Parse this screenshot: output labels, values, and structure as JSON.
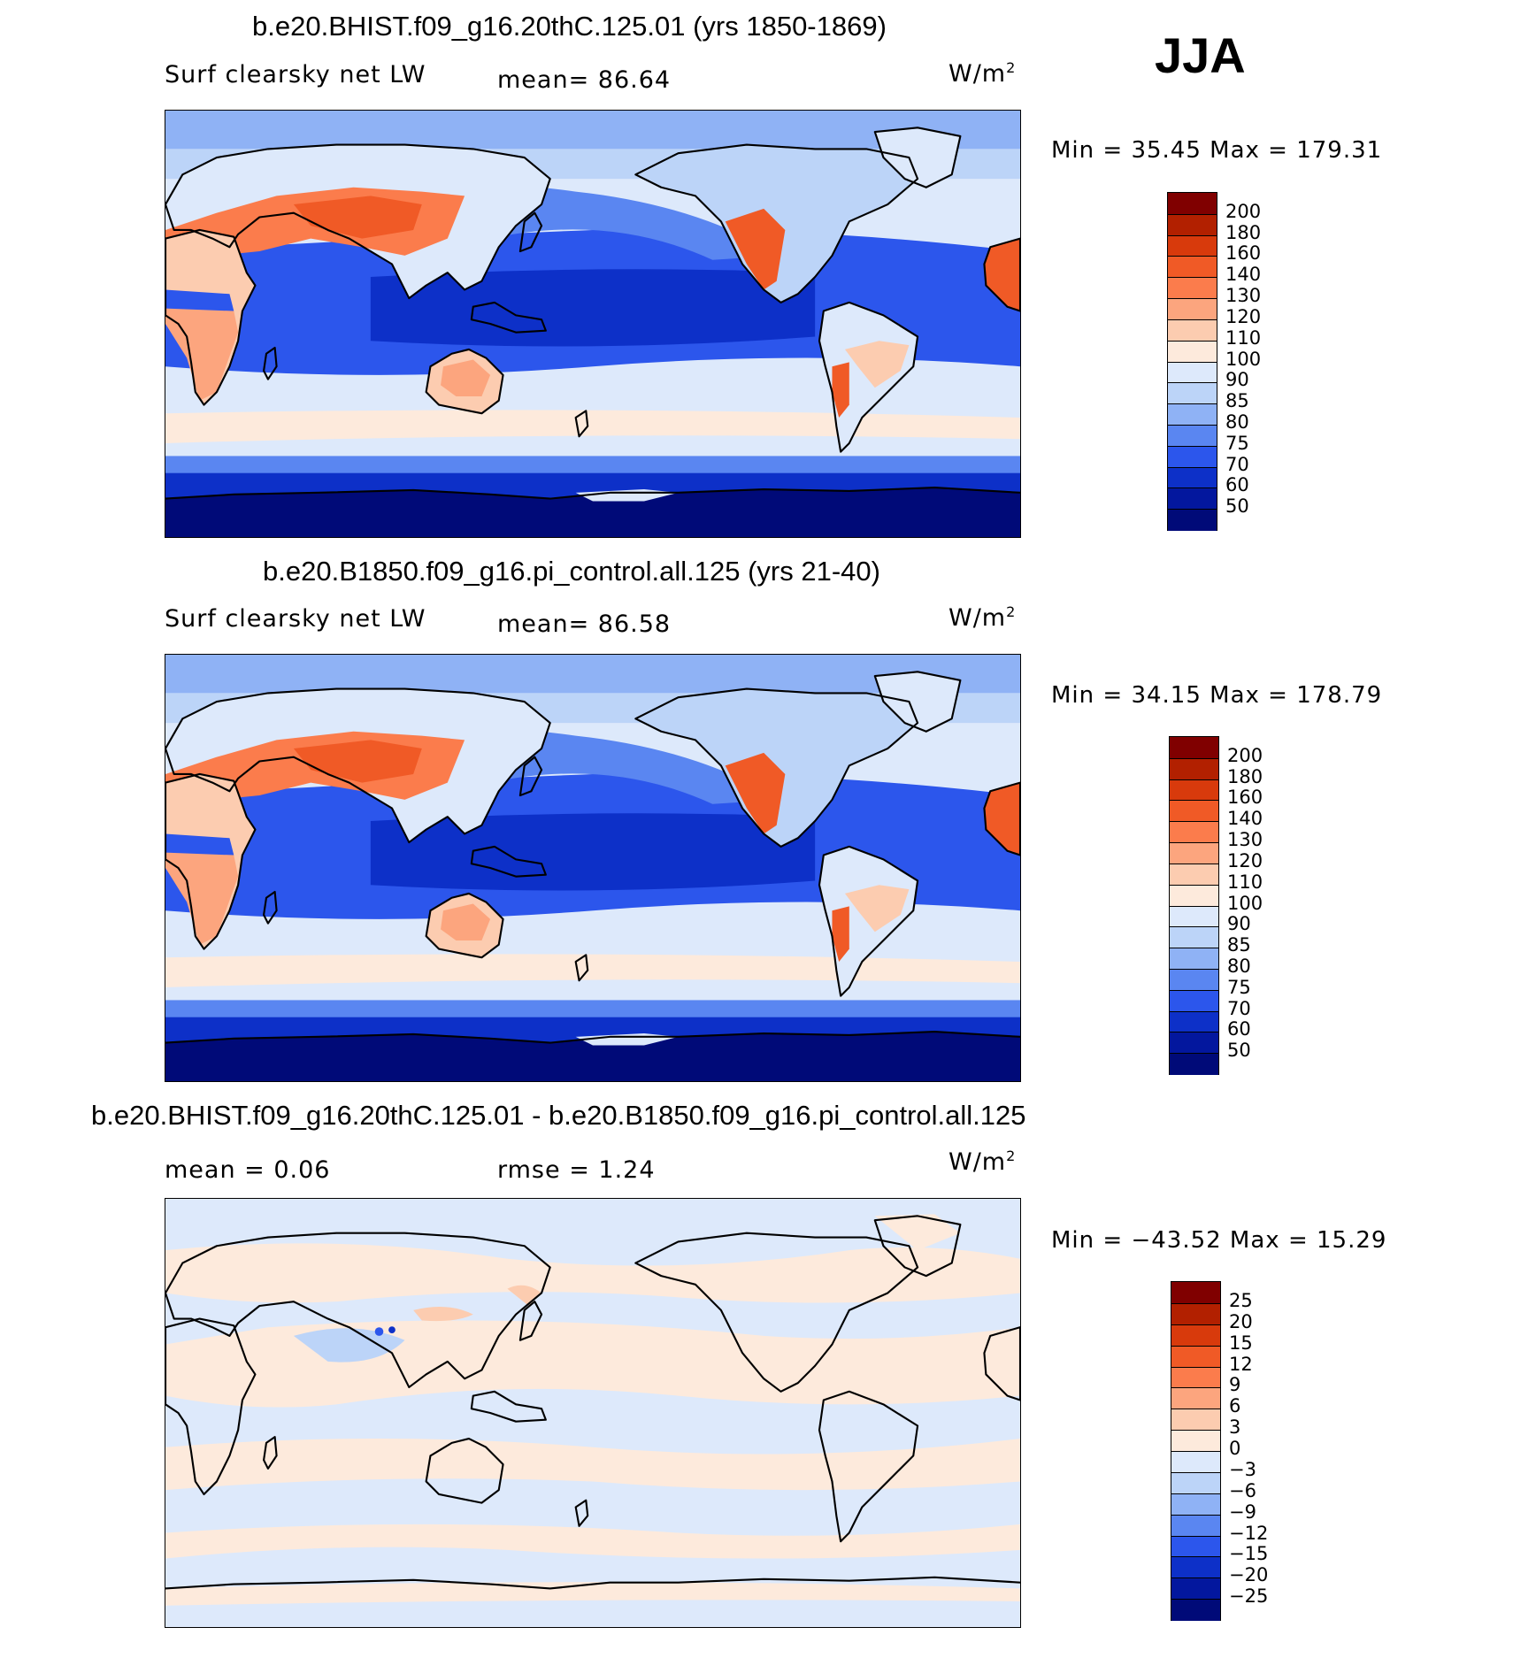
{
  "season": "JJA",
  "panels": [
    {
      "title": "b.e20.BHIST.f09_g16.20thC.125.01 (yrs 1850-1869)",
      "left_label": "Surf clearsky net LW",
      "mean_text": "mean=   86.64",
      "units": "W/m",
      "units_exp": "2",
      "minmax": "Min =   35.45 Max = 179.31"
    },
    {
      "title": "b.e20.B1850.f09_g16.pi_control.all.125 (yrs 21-40)",
      "left_label": "Surf clearsky net LW",
      "mean_text": "mean=   86.58",
      "units": "W/m",
      "units_exp": "2",
      "minmax": "Min =   34.15 Max = 178.79"
    },
    {
      "title": "b.e20.BHIST.f09_g16.20thC.125.01 - b.e20.B1850.f09_g16.pi_control.all.125",
      "left_label": "mean =    0.06",
      "mean_text": "rmse =    1.24",
      "units": "W/m",
      "units_exp": "2",
      "minmax": "Min = −43.52 Max =   15.29"
    }
  ],
  "chart_data": [
    {
      "type": "heatmap",
      "title": "b.e20.BHIST.f09_g16.20thC.125.01 (yrs 1850-1869)",
      "variable": "Surf clearsky net LW",
      "units": "W/m2",
      "mean": 86.64,
      "min": 35.45,
      "max": 179.31,
      "colorbar_levels": [
        200,
        180,
        160,
        140,
        130,
        120,
        110,
        100,
        90,
        85,
        80,
        75,
        70,
        60,
        50
      ],
      "colorbar_colors": [
        "#800000",
        "#b22000",
        "#d83a0c",
        "#f05a26",
        "#fb7c4c",
        "#fca57e",
        "#fcccb0",
        "#fdeadc",
        "#dde9fb",
        "#bcd4f8",
        "#8fb2f5",
        "#5a86f1",
        "#2c56ec",
        "#0d30c8",
        "#03179e",
        "#000a78"
      ]
    },
    {
      "type": "heatmap",
      "title": "b.e20.B1850.f09_g16.pi_control.all.125 (yrs 21-40)",
      "variable": "Surf clearsky net LW",
      "units": "W/m2",
      "mean": 86.58,
      "min": 34.15,
      "max": 178.79,
      "colorbar_levels": [
        200,
        180,
        160,
        140,
        130,
        120,
        110,
        100,
        90,
        85,
        80,
        75,
        70,
        60,
        50
      ],
      "colorbar_colors": [
        "#800000",
        "#b22000",
        "#d83a0c",
        "#f05a26",
        "#fb7c4c",
        "#fca57e",
        "#fcccb0",
        "#fdeadc",
        "#dde9fb",
        "#bcd4f8",
        "#8fb2f5",
        "#5a86f1",
        "#2c56ec",
        "#0d30c8",
        "#03179e",
        "#000a78"
      ]
    },
    {
      "type": "heatmap",
      "title": "b.e20.BHIST.f09_g16.20thC.125.01 - b.e20.B1850.f09_g16.pi_control.all.125",
      "units": "W/m2",
      "mean": 0.06,
      "rmse": 1.24,
      "min": -43.52,
      "max": 15.29,
      "colorbar_levels": [
        "25",
        "20",
        "15",
        "12",
        "9",
        "6",
        "3",
        "0",
        "−3",
        "−6",
        "−9",
        "−12",
        "−15",
        "−20",
        "−25"
      ],
      "colorbar_colors": [
        "#800000",
        "#b22000",
        "#d83a0c",
        "#f05a26",
        "#fb7c4c",
        "#fca57e",
        "#fcccb0",
        "#fdeadc",
        "#dde9fb",
        "#bcd4f8",
        "#8fb2f5",
        "#5a86f1",
        "#2c56ec",
        "#0d30c8",
        "#03179e",
        "#000a78"
      ]
    }
  ]
}
